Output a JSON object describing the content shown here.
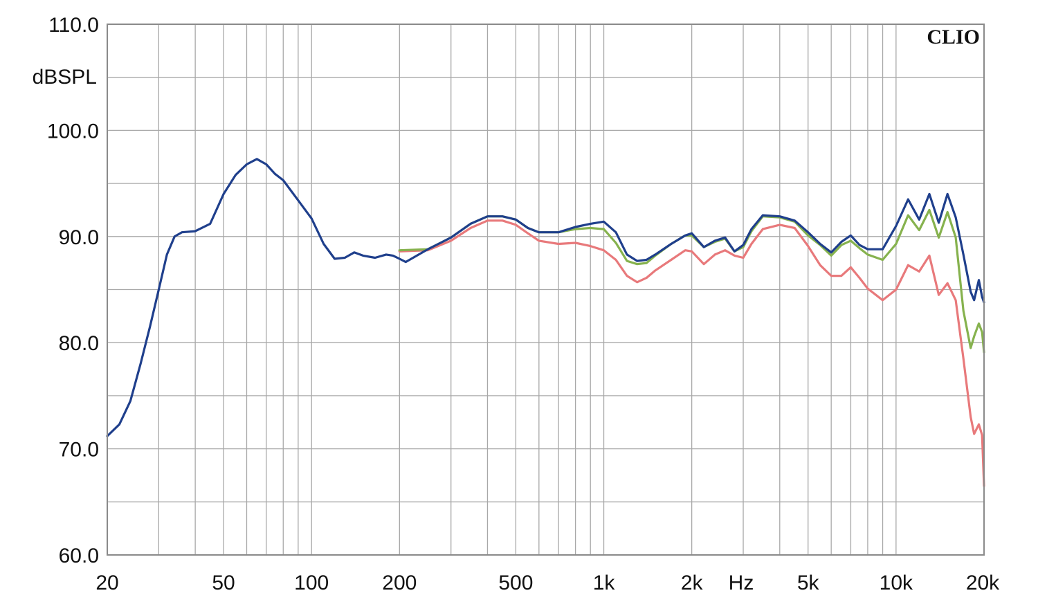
{
  "chart_data": {
    "type": "line",
    "brand": "CLIO",
    "ylabel": "dBSPL",
    "xunit": "Hz",
    "xscale": "log",
    "xlim": [
      20,
      20000
    ],
    "ylim": [
      60,
      110
    ],
    "grid": true,
    "yticks": [
      {
        "value": 110,
        "label": "110.0"
      },
      {
        "value": 100,
        "label": "100.0"
      },
      {
        "value": 90,
        "label": "90.0"
      },
      {
        "value": 80,
        "label": "80.0"
      },
      {
        "value": 70,
        "label": "70.0"
      },
      {
        "value": 60,
        "label": "60.0"
      }
    ],
    "xticks": [
      {
        "value": 20,
        "label": "20"
      },
      {
        "value": 50,
        "label": "50"
      },
      {
        "value": 100,
        "label": "100"
      },
      {
        "value": 200,
        "label": "200"
      },
      {
        "value": 500,
        "label": "500"
      },
      {
        "value": 1000,
        "label": "1k"
      },
      {
        "value": 2000,
        "label": "2k"
      },
      {
        "value": 5000,
        "label": "5k"
      },
      {
        "value": 10000,
        "label": "10k"
      },
      {
        "value": 20000,
        "label": "20k"
      }
    ],
    "series": [
      {
        "color": "#e8797b",
        "points": [
          [
            200,
            88.6
          ],
          [
            250,
            88.7
          ],
          [
            300,
            89.6
          ],
          [
            350,
            90.8
          ],
          [
            400,
            91.5
          ],
          [
            450,
            91.5
          ],
          [
            500,
            91.1
          ],
          [
            550,
            90.3
          ],
          [
            600,
            89.6
          ],
          [
            700,
            89.3
          ],
          [
            800,
            89.4
          ],
          [
            900,
            89.1
          ],
          [
            1000,
            88.7
          ],
          [
            1100,
            87.8
          ],
          [
            1200,
            86.3
          ],
          [
            1300,
            85.7
          ],
          [
            1400,
            86.1
          ],
          [
            1500,
            86.8
          ],
          [
            1700,
            87.8
          ],
          [
            1900,
            88.7
          ],
          [
            2000,
            88.6
          ],
          [
            2200,
            87.4
          ],
          [
            2400,
            88.3
          ],
          [
            2600,
            88.7
          ],
          [
            2800,
            88.2
          ],
          [
            3000,
            88.0
          ],
          [
            3200,
            89.3
          ],
          [
            3500,
            90.7
          ],
          [
            4000,
            91.1
          ],
          [
            4500,
            90.8
          ],
          [
            5000,
            89.1
          ],
          [
            5500,
            87.3
          ],
          [
            6000,
            86.3
          ],
          [
            6500,
            86.3
          ],
          [
            7000,
            87.1
          ],
          [
            7500,
            86.1
          ],
          [
            8000,
            85.1
          ],
          [
            9000,
            84.0
          ],
          [
            10000,
            85.0
          ],
          [
            11000,
            87.3
          ],
          [
            12000,
            86.7
          ],
          [
            13000,
            88.2
          ],
          [
            14000,
            84.5
          ],
          [
            15000,
            85.6
          ],
          [
            16000,
            84.0
          ],
          [
            17000,
            78.5
          ],
          [
            18000,
            73.0
          ],
          [
            18500,
            71.4
          ],
          [
            19200,
            72.3
          ],
          [
            19700,
            71.3
          ],
          [
            20000,
            66.5
          ]
        ]
      },
      {
        "color": "#86b24e",
        "points": [
          [
            200,
            88.7
          ],
          [
            250,
            88.8
          ],
          [
            300,
            89.9
          ],
          [
            350,
            91.2
          ],
          [
            400,
            91.9
          ],
          [
            450,
            91.9
          ],
          [
            500,
            91.6
          ],
          [
            550,
            90.8
          ],
          [
            600,
            90.4
          ],
          [
            700,
            90.4
          ],
          [
            800,
            90.7
          ],
          [
            900,
            90.8
          ],
          [
            1000,
            90.7
          ],
          [
            1100,
            89.4
          ],
          [
            1200,
            87.7
          ],
          [
            1300,
            87.4
          ],
          [
            1400,
            87.5
          ],
          [
            1500,
            88.2
          ],
          [
            1700,
            89.3
          ],
          [
            1900,
            90.1
          ],
          [
            2000,
            90.1
          ],
          [
            2200,
            89.0
          ],
          [
            2400,
            89.5
          ],
          [
            2600,
            89.8
          ],
          [
            2800,
            88.6
          ],
          [
            3000,
            89.0
          ],
          [
            3200,
            90.5
          ],
          [
            3500,
            91.9
          ],
          [
            4000,
            91.8
          ],
          [
            4500,
            91.4
          ],
          [
            5000,
            90.1
          ],
          [
            5500,
            89.2
          ],
          [
            6000,
            88.2
          ],
          [
            6500,
            89.2
          ],
          [
            7000,
            89.6
          ],
          [
            7500,
            88.9
          ],
          [
            8000,
            88.3
          ],
          [
            9000,
            87.8
          ],
          [
            10000,
            89.3
          ],
          [
            11000,
            92.0
          ],
          [
            12000,
            90.6
          ],
          [
            13000,
            92.5
          ],
          [
            14000,
            89.9
          ],
          [
            15000,
            92.3
          ],
          [
            16000,
            89.9
          ],
          [
            17000,
            83.0
          ],
          [
            18000,
            79.5
          ],
          [
            18500,
            80.6
          ],
          [
            19200,
            81.8
          ],
          [
            19700,
            81.0
          ],
          [
            20000,
            79.1
          ]
        ]
      },
      {
        "color": "#1f3f8c",
        "points": [
          [
            20,
            71.2
          ],
          [
            22,
            72.3
          ],
          [
            24,
            74.5
          ],
          [
            26,
            78.0
          ],
          [
            28,
            81.5
          ],
          [
            30,
            85.0
          ],
          [
            32,
            88.3
          ],
          [
            34,
            90.0
          ],
          [
            36,
            90.4
          ],
          [
            40,
            90.5
          ],
          [
            45,
            91.2
          ],
          [
            50,
            94.0
          ],
          [
            55,
            95.8
          ],
          [
            60,
            96.8
          ],
          [
            65,
            97.3
          ],
          [
            70,
            96.8
          ],
          [
            75,
            95.9
          ],
          [
            80,
            95.3
          ],
          [
            90,
            93.4
          ],
          [
            100,
            91.7
          ],
          [
            110,
            89.3
          ],
          [
            120,
            87.9
          ],
          [
            130,
            88.0
          ],
          [
            140,
            88.5
          ],
          [
            150,
            88.2
          ],
          [
            165,
            88.0
          ],
          [
            180,
            88.3
          ],
          [
            190,
            88.2
          ],
          [
            200,
            87.9
          ],
          [
            210,
            87.6
          ],
          [
            250,
            88.8
          ],
          [
            300,
            89.9
          ],
          [
            350,
            91.2
          ],
          [
            400,
            91.9
          ],
          [
            450,
            91.9
          ],
          [
            500,
            91.6
          ],
          [
            550,
            90.8
          ],
          [
            600,
            90.4
          ],
          [
            700,
            90.4
          ],
          [
            800,
            90.9
          ],
          [
            900,
            91.2
          ],
          [
            1000,
            91.4
          ],
          [
            1100,
            90.4
          ],
          [
            1200,
            88.3
          ],
          [
            1300,
            87.7
          ],
          [
            1400,
            87.8
          ],
          [
            1500,
            88.3
          ],
          [
            1700,
            89.3
          ],
          [
            1900,
            90.1
          ],
          [
            2000,
            90.3
          ],
          [
            2200,
            89.0
          ],
          [
            2400,
            89.6
          ],
          [
            2600,
            89.9
          ],
          [
            2800,
            88.6
          ],
          [
            3000,
            89.2
          ],
          [
            3200,
            90.7
          ],
          [
            3500,
            92.0
          ],
          [
            4000,
            91.9
          ],
          [
            4500,
            91.5
          ],
          [
            5000,
            90.4
          ],
          [
            5500,
            89.3
          ],
          [
            6000,
            88.5
          ],
          [
            6500,
            89.5
          ],
          [
            7000,
            90.1
          ],
          [
            7500,
            89.2
          ],
          [
            8000,
            88.8
          ],
          [
            9000,
            88.8
          ],
          [
            10000,
            91.0
          ],
          [
            11000,
            93.5
          ],
          [
            12000,
            91.6
          ],
          [
            13000,
            94.0
          ],
          [
            14000,
            91.3
          ],
          [
            15000,
            94.0
          ],
          [
            16000,
            91.8
          ],
          [
            17000,
            88.3
          ],
          [
            18000,
            84.8
          ],
          [
            18500,
            84.0
          ],
          [
            19200,
            85.9
          ],
          [
            19700,
            84.3
          ],
          [
            20000,
            83.8
          ]
        ]
      }
    ]
  }
}
